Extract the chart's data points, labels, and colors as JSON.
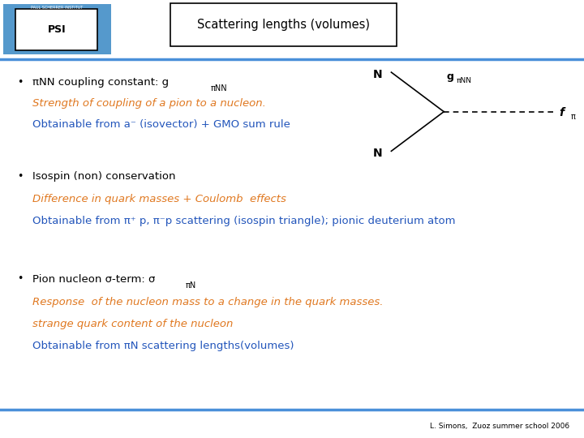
{
  "title": "Scattering lengths (volumes)",
  "background_color": "#ffffff",
  "header_line_color": "#4a90d9",
  "bullet_color": "#000000",
  "orange_color": "#e07820",
  "blue_color": "#2255bb",
  "black_color": "#000000",
  "footer_text": "L. Simons,  Zuoz summer school 2006",
  "psi_text": "PAUL SCHERRER INSTITUT",
  "bullet1_head": "πNN coupling constant: g",
  "bullet1_subscript": "πNN",
  "bullet1_orange": "Strength of coupling of a pion to a nucleon.",
  "bullet1_blue": "Obtainable from a⁻ (isovector) + GMO sum rule",
  "bullet2_head": "Isospin (non) conservation",
  "bullet2_orange": "Difference in quark masses + Coulomb  effects",
  "bullet2_blue": "Obtainable from π⁺ p, π⁻p scattering (isospin triangle); pionic deuterium atom",
  "bullet3_head": "Pion nucleon σ-term: σ",
  "bullet3_subscript": "πN",
  "bullet3_orange1": "Response  of the nucleon mass to a change in the quark masses.",
  "bullet3_orange2": "strange quark content of the nucleon",
  "bullet3_blue": "Obtainable from πN scattering lengths(volumes)",
  "diagram_vx": 0.76,
  "diagram_vy": 0.255,
  "diagram_n1x": 0.67,
  "diagram_n1y": 0.165,
  "diagram_n2x": 0.67,
  "diagram_n2y": 0.345,
  "diagram_fpix": 0.95,
  "diagram_fpiy": 0.255
}
